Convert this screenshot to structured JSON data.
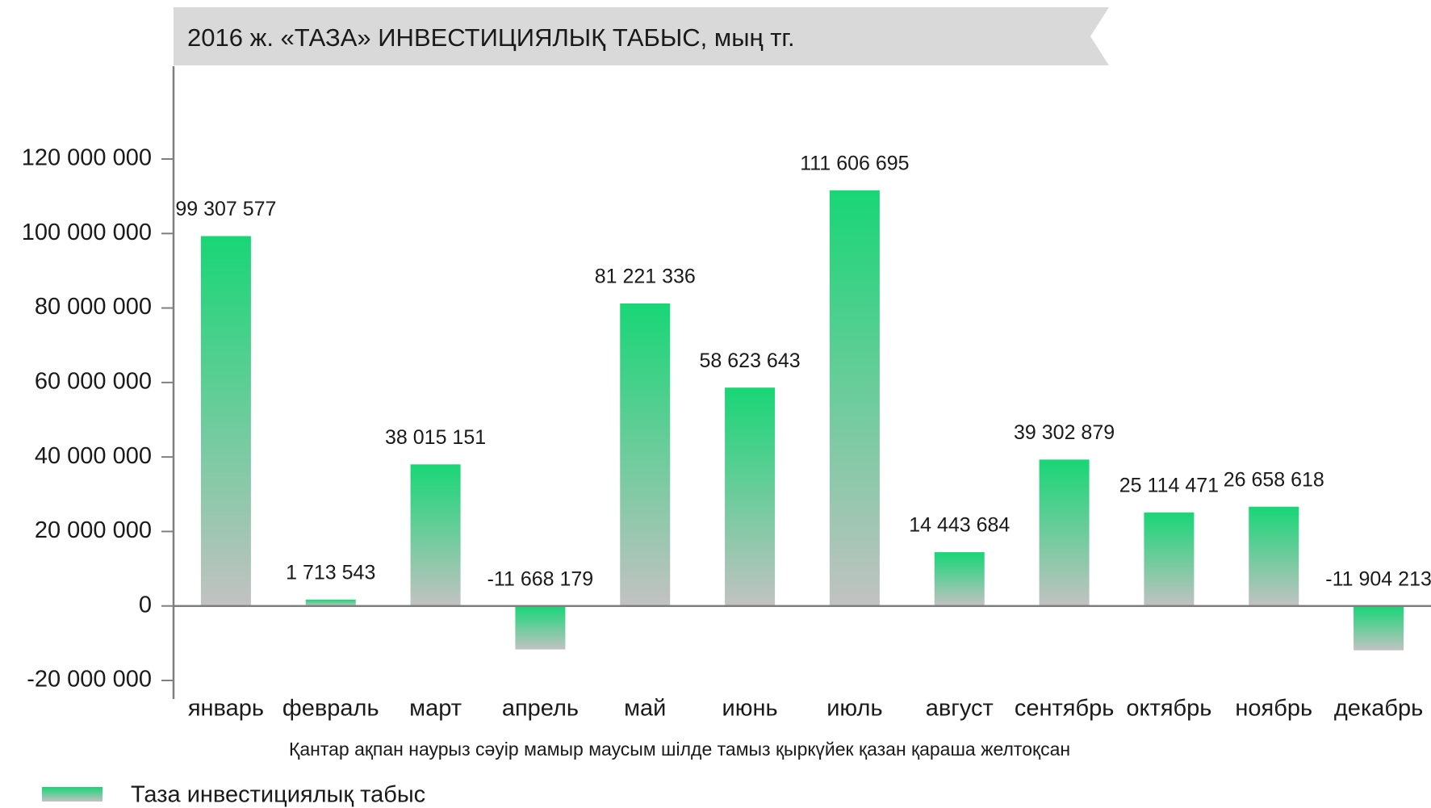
{
  "chart_data": {
    "type": "bar",
    "title": "2016  ж. «ТАЗА» ИНВЕСТИЦИЯЛЫҚ ТАБЫС, мың тг.",
    "categories": [
      "январь",
      "февраль",
      "март",
      "апрель",
      "май",
      "июнь",
      "июль",
      "август",
      "сентябрь",
      "октябрь",
      "ноябрь",
      "декабрь"
    ],
    "annotation": "Қантар ақпан наурыз сәуір мамыр маусым шілде тамыз қыркүйек қазан қараша желтоқсан",
    "series": [
      {
        "name": "Таза инвестициялық табыс",
        "color": "#18d676",
        "gradient_to": "#c2c2c2",
        "values": [
          99307577,
          1713543,
          38015151,
          -11668179,
          81221336,
          58623643,
          111606695,
          14443684,
          39302879,
          25114471,
          26658618,
          -11904213
        ],
        "value_labels": [
          "99 307 577",
          "1 713 543",
          "38 015 151",
          "-11 668 179",
          "81 221 336",
          "58 623 643",
          "111 606 695",
          "14 443 684",
          "39 302 879",
          "25 114 471",
          "26 658 618",
          "-11 904 213"
        ]
      }
    ],
    "ylim": [
      -20000000,
      120000000
    ],
    "yticks": [
      {
        "value": -20000000,
        "label": "-20 000 000"
      },
      0,
      {
        "value": 20000000,
        "label": "20 000 000"
      },
      {
        "value": 40000000,
        "label": "40 000 000"
      },
      {
        "value": 60000000,
        "label": "60 000 000"
      },
      {
        "value": 80000000,
        "label": "80 000 000"
      },
      {
        "value": 100000000,
        "label": "100 000 000"
      },
      {
        "value": 120000000,
        "label": "120 000 000"
      }
    ],
    "grid": false,
    "legend": "bottom-left"
  }
}
